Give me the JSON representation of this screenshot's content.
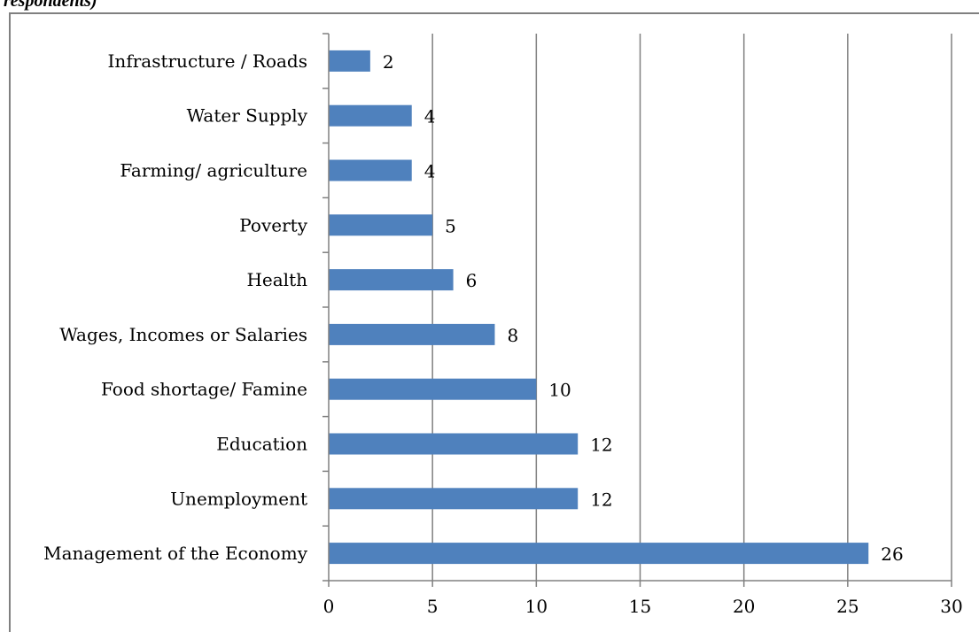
{
  "caption_fragment": "respondents)",
  "chart_data": {
    "type": "bar",
    "orientation": "horizontal",
    "categories": [
      "Infrastructure / Roads",
      "Water Supply",
      "Farming/ agriculture",
      "Poverty",
      "Health",
      "Wages, Incomes or Salaries",
      "Food shortage/ Famine",
      "Education",
      "Unemployment",
      "Management of the Economy"
    ],
    "values": [
      2,
      4,
      4,
      5,
      6,
      8,
      10,
      12,
      12,
      26
    ],
    "xlim": [
      0,
      30
    ],
    "xticks": [
      0,
      5,
      10,
      15,
      20,
      25,
      30
    ],
    "grid": "vertical",
    "data_labels": true,
    "bar_color": "#4f81bd",
    "grid_color": "#808080"
  }
}
